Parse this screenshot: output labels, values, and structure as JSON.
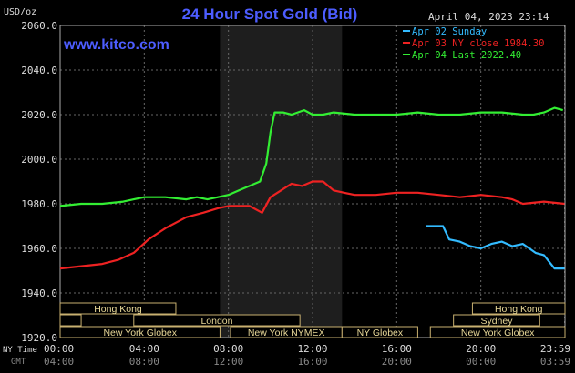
{
  "chart_data": {
    "type": "line",
    "title": "24 Hour Spot Gold (Bid)",
    "ylabel": "USD/oz",
    "website": "www.kitco.com",
    "timestamp": "April 04, 2023 23:14",
    "ylim": [
      1920,
      2060
    ],
    "yticks": [
      "2060.0",
      "2040.0",
      "2020.0",
      "2000.0",
      "1980.0",
      "1960.0",
      "1940.0",
      "1920.0"
    ],
    "xlim": [
      0,
      24
    ],
    "x_row_label_ny": "NY Time",
    "x_row_label_gmt": "GMT",
    "xticks_ny": [
      "00:00",
      "04:00",
      "08:00",
      "12:00",
      "16:00",
      "20:00",
      "23:59"
    ],
    "xticks_gmt": [
      "04:00",
      "08:00",
      "12:00",
      "16:00",
      "20:00",
      "00:00",
      "03:59"
    ],
    "grid": true,
    "legend_position": "top-right",
    "series": [
      {
        "name": "Apr 02 Sunday",
        "color": "#33bbff",
        "x": [
          17.4,
          18.2,
          18.5,
          19.0,
          19.5,
          20.0,
          20.5,
          21.0,
          21.5,
          22.0,
          22.3,
          22.6,
          23.0,
          23.5,
          23.98
        ],
        "y": [
          1970,
          1970,
          1964,
          1963,
          1961,
          1960,
          1962,
          1963,
          1961,
          1962,
          1960,
          1958,
          1957,
          1951,
          1951
        ]
      },
      {
        "name": "Apr 03 NY close 1984.30",
        "color": "#ee2222",
        "x": [
          0,
          1,
          2,
          2.8,
          3.5,
          4.2,
          5,
          6,
          6.8,
          7.5,
          8,
          9,
          9.6,
          10,
          10.5,
          11,
          11.5,
          12,
          12.5,
          13,
          13.5,
          14,
          15,
          16,
          17,
          18,
          19,
          20,
          21,
          21.5,
          22,
          23,
          23.98
        ],
        "y": [
          1951,
          1952,
          1953,
          1955,
          1958,
          1964,
          1969,
          1974,
          1976,
          1978,
          1979,
          1979,
          1976,
          1983,
          1986,
          1989,
          1988,
          1990,
          1990,
          1986,
          1985,
          1984,
          1984,
          1985,
          1985,
          1984,
          1983,
          1984,
          1983,
          1982,
          1980,
          1981,
          1980
        ]
      },
      {
        "name": "Apr 04 Last 2022.40",
        "color": "#33ee33",
        "x": [
          0,
          1,
          2,
          3,
          3.5,
          4,
          5,
          6,
          6.5,
          7,
          7.5,
          8,
          8.5,
          9,
          9.5,
          9.8,
          10,
          10.2,
          10.6,
          11,
          11.6,
          12,
          12.5,
          13,
          14,
          15,
          16,
          17,
          18,
          19,
          20,
          21,
          22,
          22.5,
          23,
          23.5,
          23.9
        ],
        "y": [
          1979,
          1980,
          1980,
          1981,
          1982,
          1983,
          1983,
          1982,
          1983,
          1982,
          1983,
          1984,
          1986,
          1988,
          1990,
          1998,
          2012,
          2021,
          2021,
          2020,
          2022,
          2020,
          2020,
          2021,
          2020,
          2020,
          2020,
          2021,
          2020,
          2020,
          2021,
          2021,
          2020,
          2020,
          2021,
          2023,
          2022
        ]
      }
    ],
    "sessions": [
      {
        "label": "Hong Kong",
        "row": 0,
        "x": [
          0,
          5.5
        ]
      },
      {
        "label": "Hong Kong",
        "row": 0,
        "x": [
          19.6,
          24
        ]
      },
      {
        "label": "London",
        "row": 1,
        "x": [
          0,
          1
        ],
        "label_hidden": true
      },
      {
        "label": "London",
        "row": 1,
        "x": [
          3.5,
          11.4
        ]
      },
      {
        "label": "Sydney",
        "row": 1,
        "x": [
          18.7,
          22.8
        ]
      },
      {
        "label": "New York Globex",
        "row": 2,
        "x": [
          0,
          7.6
        ]
      },
      {
        "label": "New York NYMEX",
        "row": 2,
        "x": [
          8.1,
          13.4
        ]
      },
      {
        "label": "NY Globex",
        "row": 2,
        "x": [
          13.4,
          17
        ]
      },
      {
        "label": "New York Globex",
        "row": 2,
        "x": [
          17.6,
          24
        ]
      }
    ],
    "highlight_range": [
      7.6,
      13.4
    ]
  }
}
